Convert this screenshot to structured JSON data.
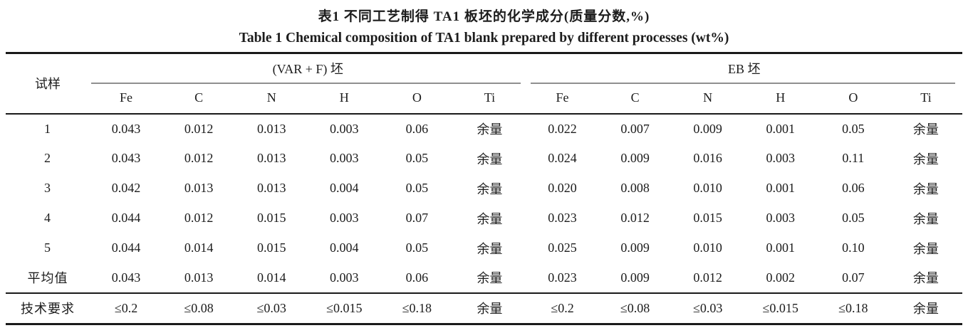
{
  "titles": {
    "zh": "表1  不同工艺制得 TA1 板坯的化学成分(质量分数,%)",
    "en": "Table 1  Chemical composition of TA1 blank prepared by different processes (wt%)"
  },
  "table": {
    "row_header_label": "试样",
    "groups": [
      {
        "label": "(VAR + F) 坯",
        "columns": [
          "Fe",
          "C",
          "N",
          "H",
          "O",
          "Ti"
        ]
      },
      {
        "label": "EB 坯",
        "columns": [
          "Fe",
          "C",
          "N",
          "H",
          "O",
          "Ti"
        ]
      }
    ],
    "rows": [
      {
        "cells": [
          "1",
          "0.043",
          "0.012",
          "0.013",
          "0.003",
          "0.06",
          "余量",
          "0.022",
          "0.007",
          "0.009",
          "0.001",
          "0.05",
          "余量"
        ]
      },
      {
        "cells": [
          "2",
          "0.043",
          "0.012",
          "0.013",
          "0.003",
          "0.05",
          "余量",
          "0.024",
          "0.009",
          "0.016",
          "0.003",
          "0.11",
          "余量"
        ]
      },
      {
        "cells": [
          "3",
          "0.042",
          "0.013",
          "0.013",
          "0.004",
          "0.05",
          "余量",
          "0.020",
          "0.008",
          "0.010",
          "0.001",
          "0.06",
          "余量"
        ]
      },
      {
        "cells": [
          "4",
          "0.044",
          "0.012",
          "0.015",
          "0.003",
          "0.07",
          "余量",
          "0.023",
          "0.012",
          "0.015",
          "0.003",
          "0.05",
          "余量"
        ]
      },
      {
        "cells": [
          "5",
          "0.044",
          "0.014",
          "0.015",
          "0.004",
          "0.05",
          "余量",
          "0.025",
          "0.009",
          "0.010",
          "0.001",
          "0.10",
          "余量"
        ]
      },
      {
        "cells": [
          "平均值",
          "0.043",
          "0.013",
          "0.014",
          "0.003",
          "0.06",
          "余量",
          "0.023",
          "0.009",
          "0.012",
          "0.002",
          "0.07",
          "余量"
        ]
      },
      {
        "cells": [
          "技术要求",
          "≤0.2",
          "≤0.08",
          "≤0.03",
          "≤0.015",
          "≤0.18",
          "余量",
          "≤0.2",
          "≤0.08",
          "≤0.03",
          "≤0.015",
          "≤0.18",
          "余量"
        ]
      }
    ],
    "colors": {
      "rule_dark": "#1a1a1a",
      "rule_gray": "#8f8f8f",
      "text": "#1c1c1c",
      "background": "#ffffff"
    }
  }
}
